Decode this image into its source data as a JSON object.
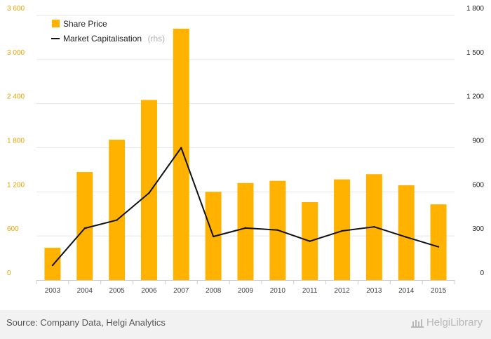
{
  "chart_data": {
    "type": "bar",
    "categories": [
      "2003",
      "2004",
      "2005",
      "2006",
      "2007",
      "2008",
      "2009",
      "2010",
      "2011",
      "2012",
      "2013",
      "2014",
      "2015"
    ],
    "series": [
      {
        "name": "Share Price",
        "type": "bar",
        "axis": "left",
        "color": "#ffb300",
        "values": [
          440,
          1470,
          1910,
          2450,
          3420,
          1200,
          1320,
          1350,
          1060,
          1370,
          1440,
          1290,
          1030
        ]
      },
      {
        "name": "Market Capitalisation",
        "name_note": "(rhs)",
        "type": "line",
        "axis": "right",
        "color": "#111111",
        "values": [
          100,
          352,
          408,
          592,
          900,
          296,
          354,
          340,
          264,
          334,
          362,
          292,
          226
        ]
      }
    ],
    "y_left": {
      "range": [
        0,
        3600
      ],
      "ticks": [
        "0",
        "600",
        "1 200",
        "1 800",
        "2 400",
        "3 000",
        "3 600"
      ]
    },
    "y_right": {
      "range": [
        0,
        1800
      ],
      "ticks": [
        "0",
        "300",
        "600",
        "900",
        "1 200",
        "1 500",
        "1 800"
      ]
    },
    "grid": true,
    "legend_position": "top-left"
  },
  "footer": {
    "source": "Source: Company Data, Helgi Analytics",
    "logo_text": "HelgiLibrary"
  },
  "colors": {
    "bar": "#ffb300",
    "line": "#111111",
    "grid": "#e6e6e6",
    "footer_bg": "#f2f2f2"
  }
}
